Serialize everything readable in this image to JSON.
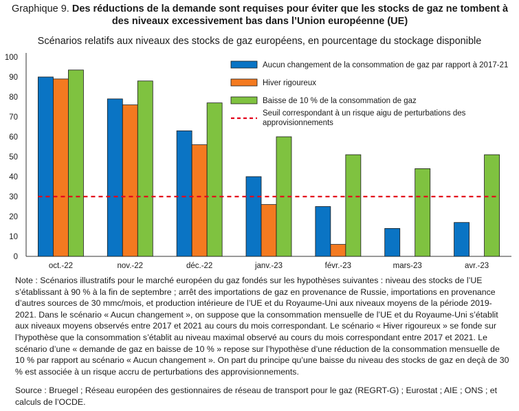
{
  "title": {
    "label": "Graphique 9.",
    "text": "Des réductions de la demande sont requises pour éviter que les stocks de gaz ne tombent à des niveaux excessivement bas dans l’Union européenne (UE)"
  },
  "subtitle": "Scénarios relatifs aux niveaux des stocks de gaz européens, en pourcentage du stockage disponible",
  "chart_data": {
    "type": "bar",
    "categories": [
      "oct.-22",
      "nov.-22",
      "déc.-22",
      "janv.-23",
      "févr.-23",
      "mars-23",
      "avr.-23"
    ],
    "series": [
      {
        "name": "Aucun changement de la consommation de gaz par rapport à 2017-21",
        "color": "#0a74c4",
        "values": [
          90,
          79,
          63,
          40,
          25,
          14,
          17
        ]
      },
      {
        "name": "Hiver rigoureux",
        "color": "#f47a20",
        "values": [
          89,
          76,
          56,
          26,
          6,
          null,
          null
        ]
      },
      {
        "name": "Baisse de  10  % de la consommation de gaz",
        "color": "#7fc240",
        "values": [
          93.5,
          88,
          77,
          60,
          51,
          44,
          51
        ]
      }
    ],
    "threshold": {
      "name": "Seuil correspondant à un risque aigu de perturbations des approvisionnements",
      "value": 30,
      "color": "#e3001b"
    },
    "ylim": [
      0,
      100
    ],
    "yticks": [
      "0",
      "10",
      "20",
      "30",
      "40",
      "50",
      "60",
      "70",
      "80",
      "90",
      "100"
    ],
    "grid": false,
    "legend_position": "top-right"
  },
  "note": "Note : Scénarios illustratifs pour le marché européen du gaz fondés sur les hypothèses suivantes : niveau des stocks de l’UE s’établissant à 90 % à la fin de septembre ; arrêt des importations de gaz en provenance de Russie, importations en provenance d’autres sources de 30 mmc/mois, et production intérieure de l’UE et du Royaume-Uni aux niveaux moyens de la période 2019-2021. Dans le scénario « Aucun changement », on suppose que la consommation mensuelle de l’UE et du Royaume-Uni s’établit aux niveaux moyens observés entre 2017 et 2021 au cours du mois correspondant. Le scénario « Hiver rigoureux » se fonde sur l’hypothèse que la consommation s’établit au niveau maximal observé au cours du mois correspondant entre 2017 et 2021. Le scénario d’une « demande de gaz en baisse de 10 % » repose sur l’hypothèse d’une réduction de la consommation mensuelle de 10 % par rapport au scénario « Aucun changement ». On part du principe qu’une baisse du niveau des stocks de gaz en deçà de 30 % est associée à un risque accru de perturbations des approvisionnements.",
  "source": "Source : Bruegel ; Réseau européen des gestionnaires de réseau de transport pour le gaz (REGRT-G) ; Eurostat ; AIE ; ONS ; et calculs de l’OCDE."
}
